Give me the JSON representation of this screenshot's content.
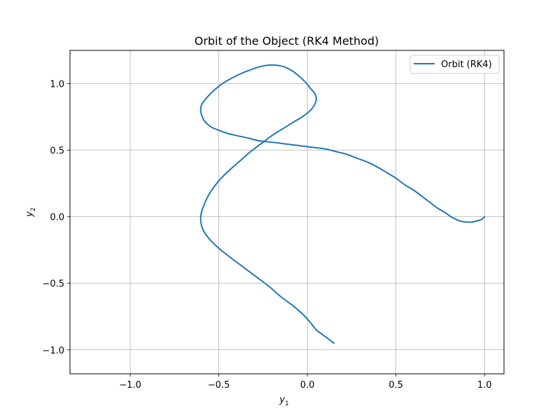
{
  "chart_data": {
    "type": "line",
    "title": "Orbit of the Object (RK4 Method)",
    "xlabel": {
      "base": "y",
      "sub": "1"
    },
    "ylabel": {
      "base": "y",
      "sub": "2"
    },
    "xlim": [
      -1.34,
      1.11
    ],
    "ylim": [
      -1.18,
      1.25
    ],
    "xticks": [
      -1.0,
      -0.5,
      0.0,
      0.5,
      1.0
    ],
    "xtick_labels": [
      "−1.0",
      "−0.5",
      "0.0",
      "0.5",
      "1.0"
    ],
    "yticks": [
      -1.0,
      -0.5,
      0.0,
      0.5,
      1.0
    ],
    "ytick_labels": [
      "−1.0",
      "−0.5",
      "0.0",
      "0.5",
      "1.0"
    ],
    "grid": true,
    "legend_position": "top-right",
    "series": [
      {
        "name": "Orbit (RK4)",
        "color": "#1f77b4",
        "x": [
          1.0,
          0.985,
          0.96,
          0.93,
          0.9,
          0.87,
          0.84,
          0.81,
          0.78,
          0.74,
          0.7,
          0.66,
          0.6,
          0.55,
          0.5,
          0.45,
          0.4,
          0.34,
          0.28,
          0.22,
          0.16,
          0.1,
          0.04,
          -0.02,
          -0.08,
          -0.14,
          -0.2,
          -0.27,
          -0.33,
          -0.4,
          -0.46,
          -0.5,
          -0.55,
          -0.59,
          -0.6,
          -0.55,
          -0.48,
          -0.4,
          -0.33,
          -0.26,
          -0.2,
          -0.14,
          -0.09,
          -0.05,
          -0.01,
          0.02,
          0.04,
          0.05,
          0.04,
          0.01,
          -0.03,
          -0.08,
          -0.14,
          -0.2,
          -0.26,
          -0.32,
          -0.38,
          -0.44,
          -0.5,
          -0.55,
          -0.58,
          -0.6,
          -0.6,
          -0.58,
          -0.53,
          -0.46,
          -0.38,
          -0.3,
          -0.22,
          -0.15,
          -0.08,
          -0.02,
          0.02,
          0.05,
          0.08,
          0.1,
          0.12,
          0.13,
          0.14,
          0.15
        ],
        "y": [
          0.0,
          -0.02,
          -0.03,
          -0.04,
          -0.04,
          -0.035,
          -0.02,
          0.0,
          0.03,
          0.06,
          0.1,
          0.14,
          0.2,
          0.24,
          0.29,
          0.33,
          0.37,
          0.41,
          0.44,
          0.47,
          0.49,
          0.51,
          0.52,
          0.53,
          0.54,
          0.55,
          0.56,
          0.57,
          0.59,
          0.61,
          0.63,
          0.65,
          0.68,
          0.74,
          0.83,
          0.92,
          1.0,
          1.06,
          1.1,
          1.13,
          1.14,
          1.13,
          1.1,
          1.06,
          1.01,
          0.96,
          0.93,
          0.89,
          0.84,
          0.79,
          0.75,
          0.71,
          0.66,
          0.61,
          0.55,
          0.49,
          0.42,
          0.35,
          0.27,
          0.18,
          0.1,
          0.02,
          -0.05,
          -0.12,
          -0.2,
          -0.28,
          -0.36,
          -0.44,
          -0.52,
          -0.6,
          -0.67,
          -0.74,
          -0.8,
          -0.85,
          -0.88,
          -0.9,
          -0.92,
          -0.93,
          -0.94,
          -0.95
        ]
      }
    ]
  }
}
